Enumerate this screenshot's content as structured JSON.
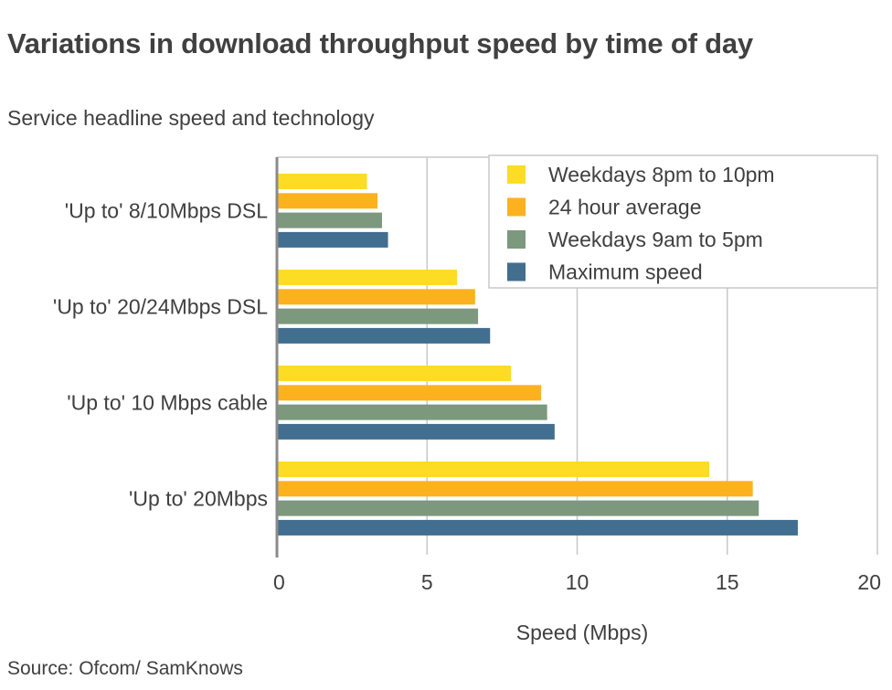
{
  "title": "Variations in download throughput speed by time of day",
  "subtitle": "Service headline speed and technology",
  "source": "Source: Ofcom/ SamKnows",
  "chart_data": {
    "type": "bar",
    "orientation": "horizontal",
    "categories": [
      "'Up to' 8/10Mbps DSL",
      "'Up to' 20/24Mbps DSL",
      "'Up to' 10 Mbps cable",
      "'Up to' 20Mbps"
    ],
    "series": [
      {
        "name": "Weekdays 8pm to 10pm",
        "color": "#fcdc24",
        "values": [
          3.0,
          6.0,
          7.8,
          14.4
        ]
      },
      {
        "name": "24 hour average",
        "color": "#fcb21e",
        "values": [
          3.35,
          6.6,
          8.8,
          15.85
        ]
      },
      {
        "name": "Weekdays 9am to 5pm",
        "color": "#7c987d",
        "values": [
          3.5,
          6.7,
          9.0,
          16.05
        ]
      },
      {
        "name": "Maximum speed",
        "color": "#426e8f",
        "values": [
          3.7,
          7.1,
          9.25,
          17.35
        ]
      }
    ],
    "xlabel": "Speed (Mbps)",
    "ylabel": "",
    "xlim": [
      0,
      20
    ],
    "xticks": [
      0,
      5,
      10,
      15,
      20
    ],
    "grid": true,
    "legend_position": "top-right"
  }
}
